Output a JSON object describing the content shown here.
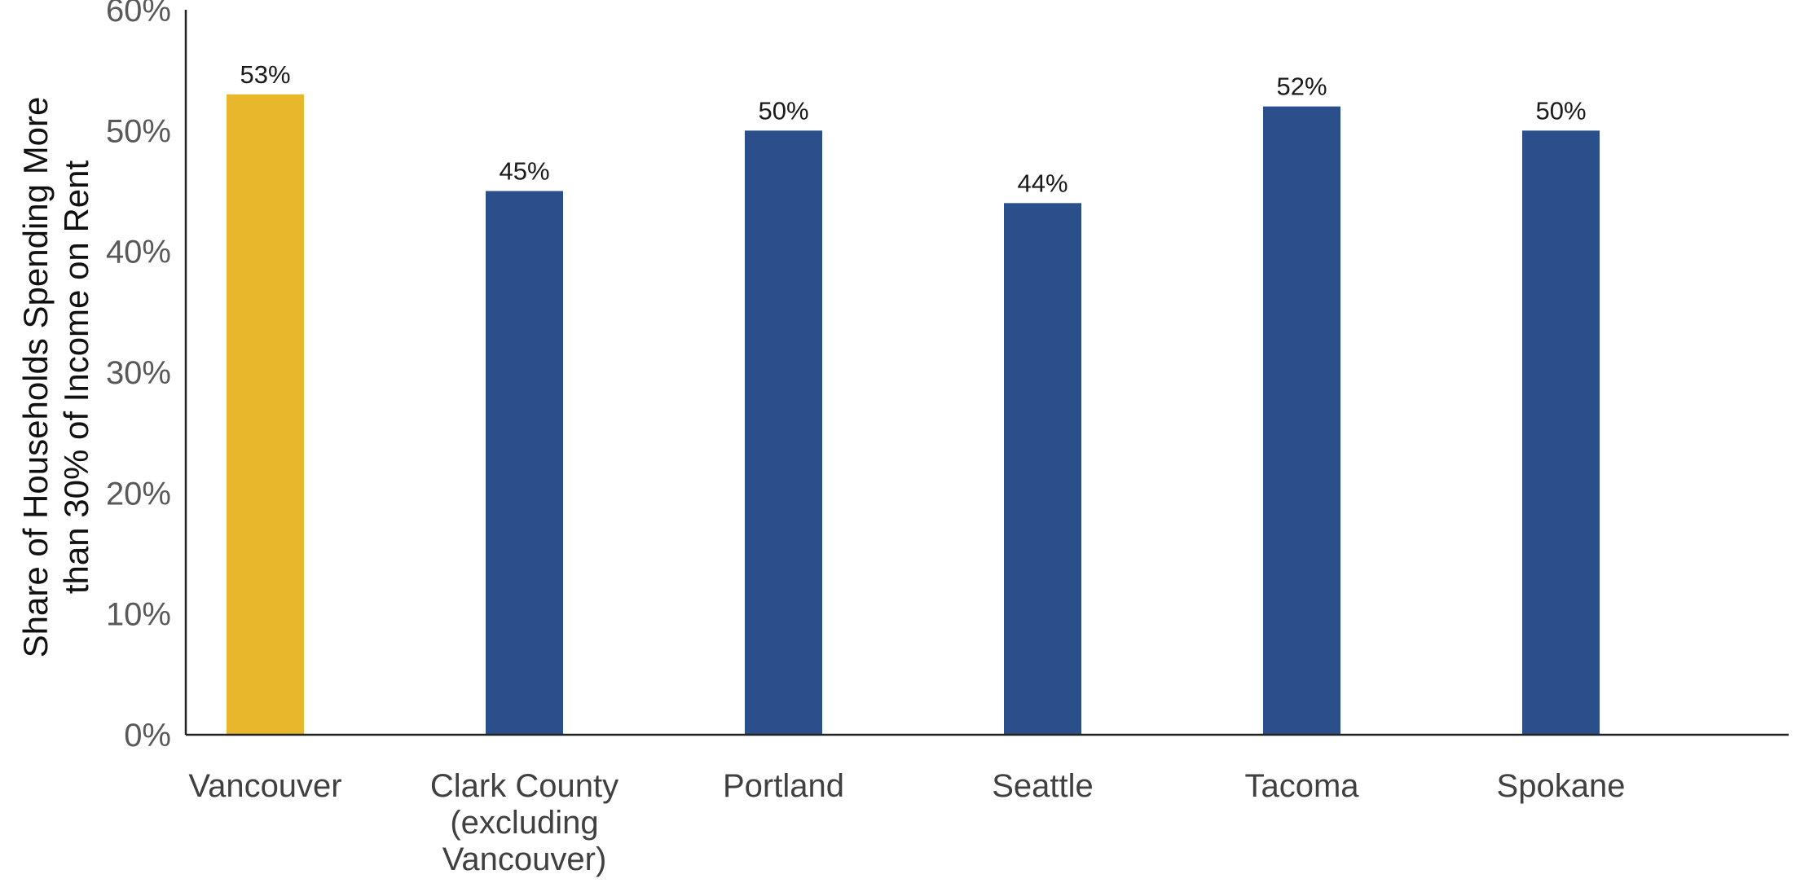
{
  "chart_data": {
    "type": "bar",
    "categories": [
      [
        "Vancouver"
      ],
      [
        "Clark County",
        "(excluding",
        "Vancouver)"
      ],
      [
        "Portland"
      ],
      [
        "Seattle"
      ],
      [
        "Tacoma"
      ],
      [
        "Spokane"
      ]
    ],
    "values": [
      53,
      45,
      50,
      44,
      52,
      50
    ],
    "data_labels": [
      "53%",
      "45%",
      "50%",
      "44%",
      "52%",
      "50%"
    ],
    "bar_colors": [
      "#E9B72B",
      "#2B4F8A",
      "#2B4F8A",
      "#2B4F8A",
      "#2B4F8A",
      "#2B4F8A"
    ],
    "ylabel": [
      "Share of Households Spending More",
      "than 30% of Income on Rent"
    ],
    "ylim": [
      0,
      60
    ],
    "yticks": [
      0,
      10,
      20,
      30,
      40,
      50,
      60
    ],
    "ytick_labels": [
      "0%",
      "10%",
      "20%",
      "30%",
      "40%",
      "50%",
      "60%"
    ],
    "title": "",
    "xlabel": "",
    "grid": false,
    "legend": false
  }
}
